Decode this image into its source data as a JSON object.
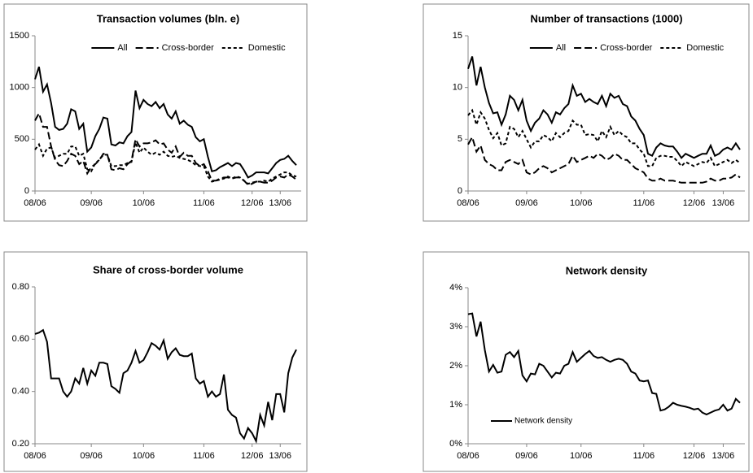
{
  "chart_data": [
    {
      "type": "line",
      "title": "Transaction volumes (bln. e)",
      "categories": [
        "08/06",
        null,
        null,
        null,
        null,
        null,
        null,
        null,
        null,
        null,
        null,
        null,
        null,
        null,
        "09/06",
        null,
        null,
        null,
        null,
        null,
        null,
        null,
        null,
        null,
        null,
        null,
        null,
        "10/06",
        null,
        null,
        null,
        null,
        null,
        null,
        null,
        null,
        null,
        null,
        null,
        null,
        null,
        null,
        "11/06",
        null,
        null,
        null,
        null,
        null,
        null,
        null,
        null,
        null,
        null,
        null,
        "12/06",
        null,
        null,
        null,
        null,
        null,
        null,
        "13/06",
        null,
        null,
        null,
        null
      ],
      "ylim": [
        0,
        1500
      ],
      "yticks": [
        0,
        500,
        1000,
        1500
      ],
      "legend": "top",
      "series": [
        {
          "name": "All",
          "color": "#000000",
          "dash": "solid",
          "values": [
            1080,
            1200,
            960,
            1030,
            850,
            620,
            590,
            600,
            650,
            790,
            770,
            600,
            650,
            380,
            420,
            530,
            600,
            710,
            700,
            450,
            440,
            470,
            460,
            530,
            570,
            970,
            800,
            880,
            840,
            820,
            860,
            800,
            840,
            740,
            700,
            770,
            650,
            680,
            640,
            620,
            520,
            480,
            500,
            330,
            190,
            200,
            230,
            250,
            270,
            240,
            270,
            260,
            200,
            130,
            150,
            180,
            180,
            180,
            170,
            220,
            270,
            300,
            310,
            340,
            290,
            250
          ]
        },
        {
          "name": "Cross-border",
          "color": "#000000",
          "dash": "long",
          "values": [
            680,
            750,
            620,
            620,
            430,
            300,
            250,
            240,
            290,
            360,
            340,
            260,
            290,
            170,
            230,
            260,
            300,
            360,
            350,
            210,
            200,
            220,
            210,
            260,
            290,
            500,
            430,
            460,
            460,
            470,
            490,
            450,
            460,
            400,
            370,
            430,
            330,
            370,
            340,
            340,
            270,
            240,
            260,
            190,
            100,
            100,
            120,
            130,
            130,
            120,
            130,
            130,
            100,
            60,
            70,
            90,
            90,
            80,
            80,
            100,
            130,
            140,
            130,
            160,
            140,
            110
          ]
        },
        {
          "name": "Domestic",
          "color": "#000000",
          "dash": "short",
          "values": [
            400,
            450,
            340,
            410,
            420,
            320,
            340,
            360,
            360,
            430,
            430,
            340,
            360,
            210,
            190,
            270,
            300,
            350,
            350,
            240,
            240,
            250,
            250,
            270,
            280,
            470,
            370,
            420,
            380,
            350,
            370,
            350,
            380,
            340,
            330,
            340,
            320,
            310,
            300,
            280,
            250,
            240,
            240,
            140,
            90,
            100,
            110,
            120,
            140,
            120,
            140,
            130,
            100,
            70,
            80,
            90,
            90,
            100,
            90,
            120,
            140,
            160,
            180,
            180,
            150,
            140
          ]
        }
      ]
    },
    {
      "type": "line",
      "title": "Number of transactions (1000)",
      "categories": [
        "08/06",
        null,
        null,
        null,
        null,
        null,
        null,
        null,
        null,
        null,
        null,
        null,
        null,
        null,
        "09/06",
        null,
        null,
        null,
        null,
        null,
        null,
        null,
        null,
        null,
        null,
        null,
        null,
        "10/06",
        null,
        null,
        null,
        null,
        null,
        null,
        null,
        null,
        null,
        null,
        null,
        null,
        null,
        null,
        "11/06",
        null,
        null,
        null,
        null,
        null,
        null,
        null,
        null,
        null,
        null,
        null,
        "12/06",
        null,
        null,
        null,
        null,
        null,
        null,
        "13/06",
        null,
        null,
        null,
        null
      ],
      "ylim": [
        0,
        15
      ],
      "yticks": [
        0,
        5,
        10,
        15
      ],
      "legend": "top",
      "series": [
        {
          "name": "All",
          "color": "#000000",
          "dash": "solid",
          "values": [
            11.8,
            13.0,
            10.2,
            12.0,
            10.0,
            8.5,
            7.5,
            7.6,
            6.4,
            7.4,
            9.2,
            8.8,
            7.8,
            8.8,
            6.8,
            5.8,
            6.6,
            7.0,
            7.8,
            7.4,
            6.6,
            7.6,
            7.4,
            8.0,
            8.4,
            10.2,
            9.2,
            9.4,
            8.6,
            8.9,
            8.6,
            8.4,
            9.2,
            8.2,
            9.4,
            9.0,
            9.2,
            8.4,
            8.2,
            7.2,
            6.8,
            6.0,
            5.4,
            3.6,
            3.4,
            4.2,
            4.6,
            4.4,
            4.3,
            4.3,
            3.8,
            3.2,
            3.6,
            3.4,
            3.2,
            3.4,
            3.6,
            3.6,
            4.4,
            3.4,
            3.6,
            4.0,
            4.2,
            4.0,
            4.6,
            4.0
          ]
        },
        {
          "name": "Cross-border",
          "color": "#000000",
          "dash": "long",
          "values": [
            4.5,
            5.2,
            3.8,
            4.4,
            3.0,
            2.6,
            2.4,
            2.0,
            2.0,
            2.8,
            3.0,
            2.8,
            2.6,
            3.0,
            1.8,
            1.6,
            1.8,
            2.2,
            2.4,
            2.2,
            1.8,
            2.0,
            2.2,
            2.4,
            2.6,
            3.4,
            2.8,
            3.0,
            3.2,
            3.4,
            3.2,
            3.6,
            3.4,
            3.0,
            3.2,
            3.6,
            3.4,
            3.0,
            3.0,
            2.6,
            2.2,
            2.0,
            1.8,
            1.2,
            1.0,
            1.0,
            1.2,
            1.0,
            1.0,
            1.0,
            0.9,
            0.8,
            0.8,
            0.8,
            0.8,
            0.8,
            0.8,
            0.9,
            1.2,
            1.0,
            1.0,
            1.2,
            1.2,
            1.3,
            1.6,
            1.3
          ]
        },
        {
          "name": "Domestic",
          "color": "#000000",
          "dash": "short",
          "values": [
            7.3,
            7.8,
            6.4,
            7.6,
            7.0,
            5.9,
            5.1,
            5.6,
            4.4,
            4.6,
            6.2,
            6.0,
            5.2,
            5.8,
            5.0,
            4.2,
            4.8,
            4.8,
            5.4,
            5.2,
            4.8,
            5.6,
            5.2,
            5.6,
            5.8,
            6.8,
            6.4,
            6.4,
            5.4,
            5.5,
            5.4,
            4.8,
            5.8,
            5.2,
            6.2,
            5.4,
            5.8,
            5.4,
            5.2,
            4.6,
            4.6,
            4.0,
            3.6,
            2.4,
            2.4,
            3.2,
            3.4,
            3.4,
            3.3,
            3.3,
            2.9,
            2.4,
            2.8,
            2.6,
            2.4,
            2.6,
            2.8,
            2.7,
            3.2,
            2.4,
            2.6,
            2.8,
            3.0,
            2.7,
            3.0,
            2.7
          ]
        }
      ]
    },
    {
      "type": "line",
      "title": "Share  of cross-border volume",
      "categories": [
        "08/06",
        null,
        null,
        null,
        null,
        null,
        null,
        null,
        null,
        null,
        null,
        null,
        null,
        null,
        "09/06",
        null,
        null,
        null,
        null,
        null,
        null,
        null,
        null,
        null,
        null,
        null,
        null,
        "10/06",
        null,
        null,
        null,
        null,
        null,
        null,
        null,
        null,
        null,
        null,
        null,
        null,
        null,
        null,
        "11/06",
        null,
        null,
        null,
        null,
        null,
        null,
        null,
        null,
        null,
        null,
        null,
        "12/06",
        null,
        null,
        null,
        null,
        null,
        null,
        "13/06",
        null,
        null,
        null,
        null
      ],
      "ylim": [
        0.2,
        0.8
      ],
      "yticks": [
        {
          "value": 0.2,
          "label": "0.20"
        },
        {
          "value": 0.4,
          "label": "0.40"
        },
        {
          "value": 0.6,
          "label": "0.60"
        },
        {
          "value": 0.8,
          "label": "0.80"
        }
      ],
      "color": "#000000",
      "values": [
        0.62,
        0.625,
        0.635,
        0.59,
        0.45,
        0.45,
        0.45,
        0.4,
        0.38,
        0.4,
        0.45,
        0.43,
        0.49,
        0.43,
        0.48,
        0.46,
        0.51,
        0.51,
        0.505,
        0.42,
        0.41,
        0.395,
        0.47,
        0.48,
        0.51,
        0.555,
        0.51,
        0.52,
        0.55,
        0.585,
        0.575,
        0.56,
        0.595,
        0.525,
        0.55,
        0.565,
        0.54,
        0.535,
        0.535,
        0.545,
        0.45,
        0.43,
        0.44,
        0.38,
        0.4,
        0.38,
        0.39,
        0.465,
        0.33,
        0.31,
        0.3,
        0.24,
        0.22,
        0.26,
        0.24,
        0.21,
        0.31,
        0.27,
        0.36,
        0.29,
        0.39,
        0.39,
        0.32,
        0.47,
        0.53,
        0.56
      ]
    },
    {
      "type": "line",
      "title": "Network density",
      "categories": [
        "08/06",
        null,
        null,
        null,
        null,
        null,
        null,
        null,
        null,
        null,
        null,
        null,
        null,
        null,
        "09/06",
        null,
        null,
        null,
        null,
        null,
        null,
        null,
        null,
        null,
        null,
        null,
        null,
        "10/06",
        null,
        null,
        null,
        null,
        null,
        null,
        null,
        null,
        null,
        null,
        null,
        null,
        null,
        null,
        "11/06",
        null,
        null,
        null,
        null,
        null,
        null,
        null,
        null,
        null,
        null,
        null,
        "12/06",
        null,
        null,
        null,
        null,
        null,
        null,
        "13/06",
        null,
        null,
        null,
        null
      ],
      "ylim": [
        0,
        4
      ],
      "yticks": [
        {
          "value": 0,
          "label": "0%"
        },
        {
          "value": 1,
          "label": "1%"
        },
        {
          "value": 2,
          "label": "2%"
        },
        {
          "value": 3,
          "label": "3%"
        },
        {
          "value": 4,
          "label": "4%"
        }
      ],
      "legend": "lower left",
      "series": [
        {
          "name": "Network density",
          "color": "#000000",
          "dash": "solid",
          "values": [
            3.32,
            3.34,
            2.75,
            3.13,
            2.4,
            1.85,
            2.02,
            1.82,
            1.85,
            2.28,
            2.35,
            2.22,
            2.38,
            1.75,
            1.6,
            1.8,
            1.78,
            2.05,
            2.0,
            1.85,
            1.7,
            1.82,
            1.8,
            2.0,
            2.05,
            2.35,
            2.1,
            2.2,
            2.3,
            2.38,
            2.25,
            2.2,
            2.22,
            2.15,
            2.1,
            2.15,
            2.18,
            2.15,
            2.05,
            1.85,
            1.8,
            1.62,
            1.6,
            1.62,
            1.3,
            1.28,
            0.85,
            0.88,
            0.95,
            1.05,
            1.0,
            0.97,
            0.95,
            0.92,
            0.88,
            0.9,
            0.8,
            0.75,
            0.8,
            0.85,
            0.88,
            1.0,
            0.85,
            0.9,
            1.15,
            1.05
          ]
        }
      ]
    }
  ]
}
